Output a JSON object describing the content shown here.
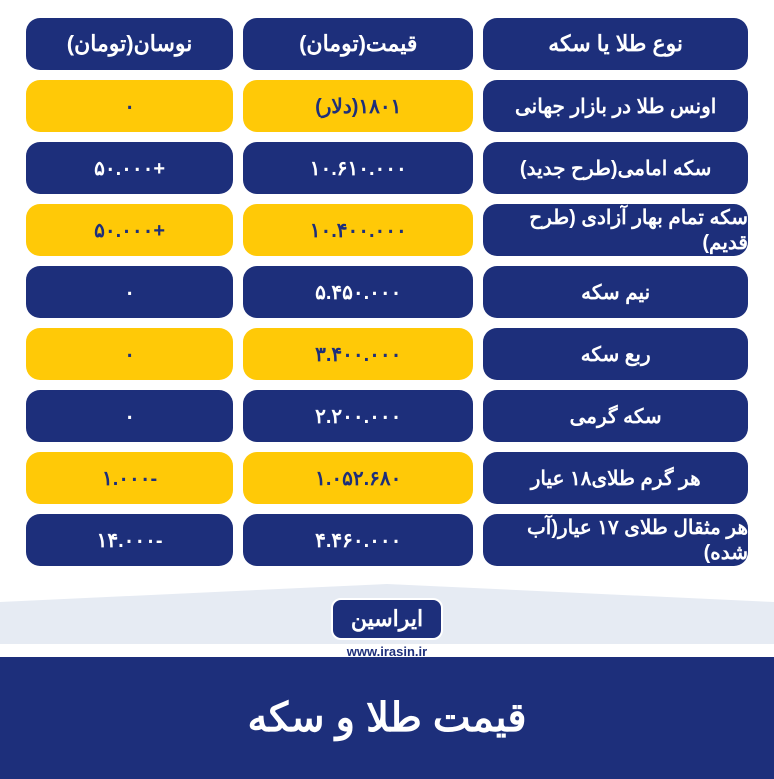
{
  "colors": {
    "blue": "#1d2f7b",
    "yellow": "#ffc907",
    "white": "#ffffff",
    "divider": "#e6ebf3"
  },
  "header": {
    "type": "نوع طلا یا سکه",
    "price": "قیمت(تومان)",
    "change": "نوسان(تومان)"
  },
  "rows": [
    {
      "type": "اونس طلا در بازار جهانی",
      "price": "۱۸۰۱(دلار)",
      "change": "۰",
      "style": "yellow"
    },
    {
      "type": "سکه امامی(طرح جدید)",
      "price": "۱۰.۶۱۰.۰۰۰",
      "change": "+۵۰.۰۰۰",
      "style": "blue"
    },
    {
      "type": "سکه تمام بهار آزادی (طرح قدیم)",
      "price": "۱۰.۴۰۰.۰۰۰",
      "change": "+۵۰.۰۰۰",
      "style": "yellow"
    },
    {
      "type": "نیم سکه",
      "price": "۵.۴۵۰.۰۰۰",
      "change": "۰",
      "style": "blue"
    },
    {
      "type": "ربع سکه",
      "price": "۳.۴۰۰.۰۰۰",
      "change": "۰",
      "style": "yellow"
    },
    {
      "type": "سکه گرمی",
      "price": "۲.۲۰۰.۰۰۰",
      "change": "۰",
      "style": "blue"
    },
    {
      "type": "هر گرم طلای۱۸ عیار",
      "price": "۱.۰۵۲.۶۸۰",
      "change": "-۱.۰۰۰",
      "style": "yellow"
    },
    {
      "type": "هر مثقال طلای ۱۷ عیار(آب شده)",
      "price": "۴.۴۶۰.۰۰۰",
      "change": "-۱۴.۰۰۰",
      "style": "blue"
    }
  ],
  "logo": {
    "text": "ایراسین",
    "url": "www.irasin.ir"
  },
  "footer": {
    "title": "قیمت طلا و سکه"
  }
}
